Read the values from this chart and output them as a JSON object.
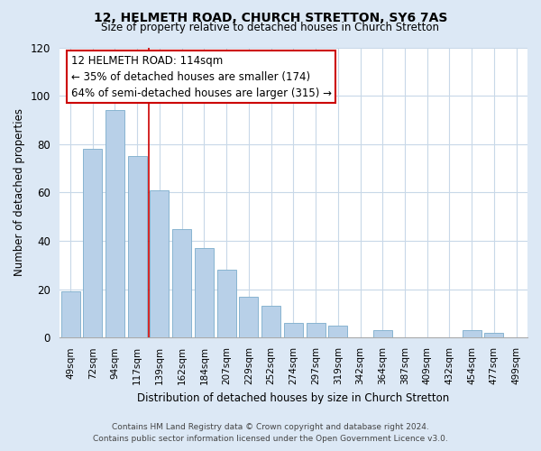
{
  "title": "12, HELMETH ROAD, CHURCH STRETTON, SY6 7AS",
  "subtitle": "Size of property relative to detached houses in Church Stretton",
  "xlabel": "Distribution of detached houses by size in Church Stretton",
  "ylabel": "Number of detached properties",
  "bar_labels": [
    "49sqm",
    "72sqm",
    "94sqm",
    "117sqm",
    "139sqm",
    "162sqm",
    "184sqm",
    "207sqm",
    "229sqm",
    "252sqm",
    "274sqm",
    "297sqm",
    "319sqm",
    "342sqm",
    "364sqm",
    "387sqm",
    "409sqm",
    "432sqm",
    "454sqm",
    "477sqm",
    "499sqm"
  ],
  "bar_values": [
    19,
    78,
    94,
    75,
    61,
    45,
    37,
    28,
    17,
    13,
    6,
    6,
    5,
    0,
    3,
    0,
    0,
    0,
    3,
    2,
    0
  ],
  "bar_color": "#b8d0e8",
  "bar_edge_color": "#88b4d0",
  "annotation_text_line1": "12 HELMETH ROAD: 114sqm",
  "annotation_text_line2": "← 35% of detached houses are smaller (174)",
  "annotation_text_line3": "64% of semi-detached houses are larger (315) →",
  "annotation_box_color": "#ffffff",
  "annotation_box_edge": "#cc0000",
  "vline_color": "#cc0000",
  "vline_x": 3.5,
  "ylim": [
    0,
    120
  ],
  "yticks": [
    0,
    20,
    40,
    60,
    80,
    100,
    120
  ],
  "footer_line1": "Contains HM Land Registry data © Crown copyright and database right 2024.",
  "footer_line2": "Contains public sector information licensed under the Open Government Licence v3.0.",
  "bg_color": "#dce8f5",
  "plot_bg_color": "#ffffff",
  "grid_color": "#c8d8e8"
}
